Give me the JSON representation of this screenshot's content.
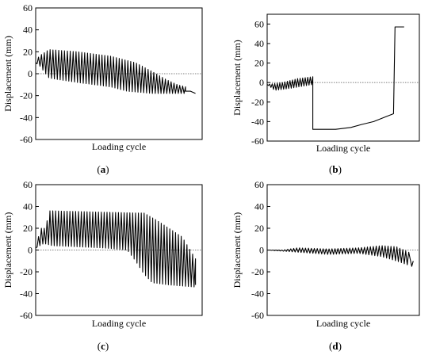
{
  "chart_data": [
    {
      "id": "a",
      "type": "line",
      "panel_label": "(a)",
      "xlabel": "Loading cycle",
      "ylabel": "Displacement (mm)",
      "ylim": [
        -60,
        60
      ],
      "yticks": [
        "60",
        "40",
        "20",
        "0",
        "-20",
        "-40",
        "-60"
      ],
      "zero_line": "dotted",
      "series": [
        {
          "pattern": "oscillation",
          "upper": [
            [
              0,
              10
            ],
            [
              0.02,
              16
            ],
            [
              0.08,
              22
            ],
            [
              0.25,
              20
            ],
            [
              0.45,
              16
            ],
            [
              0.6,
              10
            ],
            [
              0.7,
              2
            ],
            [
              0.78,
              -5
            ],
            [
              0.85,
              -10
            ],
            [
              0.9,
              -12
            ]
          ],
          "lower": [
            [
              0,
              10
            ],
            [
              0.02,
              8
            ],
            [
              0.08,
              -4
            ],
            [
              0.25,
              -8
            ],
            [
              0.45,
              -12
            ],
            [
              0.55,
              -16
            ],
            [
              0.7,
              -18
            ],
            [
              0.85,
              -18
            ],
            [
              0.9,
              -18
            ]
          ],
          "cycles": 52,
          "tail": [
            [
              0.9,
              -16
            ],
            [
              0.93,
              -16
            ],
            [
              0.96,
              -18
            ]
          ]
        }
      ]
    },
    {
      "id": "b",
      "type": "line",
      "panel_label": "(b)",
      "xlabel": "Loading cycle",
      "ylabel": "Displacement (mm)",
      "ylim": [
        -60,
        70
      ],
      "yticks": [
        "60",
        "40",
        "20",
        "0",
        "-20",
        "-40",
        "-60"
      ],
      "zero_line": "dotted",
      "series": [
        {
          "pattern": "oscillation",
          "upper": [
            [
              0,
              -2
            ],
            [
              0.1,
              0
            ],
            [
              0.2,
              4
            ],
            [
              0.3,
              6
            ]
          ],
          "lower": [
            [
              0,
              -2
            ],
            [
              0.05,
              -8
            ],
            [
              0.15,
              -6
            ],
            [
              0.3,
              -2
            ]
          ],
          "cycles": 18,
          "tail": [
            [
              0.3,
              6
            ],
            [
              0.3,
              -48
            ],
            [
              0.45,
              -48
            ],
            [
              0.55,
              -46
            ],
            [
              0.62,
              -43
            ],
            [
              0.7,
              -40
            ],
            [
              0.78,
              -35
            ],
            [
              0.83,
              -32
            ],
            [
              0.84,
              57
            ],
            [
              0.9,
              57
            ]
          ]
        }
      ]
    },
    {
      "id": "c",
      "type": "line",
      "panel_label": "(c)",
      "xlabel": "Loading cycle",
      "ylabel": "Displacement (mm)",
      "ylim": [
        -60,
        60
      ],
      "yticks": [
        "60",
        "40",
        "20",
        "0",
        "-20",
        "-40",
        "-60"
      ],
      "zero_line": "dotted",
      "series": [
        {
          "pattern": "oscillation",
          "upper": [
            [
              0,
              2
            ],
            [
              0.03,
              20
            ],
            [
              0.06,
              20
            ],
            [
              0.08,
              36
            ],
            [
              0.6,
              34
            ],
            [
              0.65,
              34
            ],
            [
              0.72,
              28
            ],
            [
              0.8,
              20
            ],
            [
              0.88,
              12
            ],
            [
              0.96,
              -8
            ]
          ],
          "lower": [
            [
              0,
              2
            ],
            [
              0.05,
              6
            ],
            [
              0.1,
              4
            ],
            [
              0.4,
              2
            ],
            [
              0.55,
              0
            ],
            [
              0.6,
              -10
            ],
            [
              0.65,
              -22
            ],
            [
              0.7,
              -30
            ],
            [
              0.8,
              -32
            ],
            [
              0.96,
              -34
            ]
          ],
          "cycles": 56,
          "tail": [
            [
              0.96,
              -32
            ]
          ]
        }
      ]
    },
    {
      "id": "d",
      "type": "line",
      "panel_label": "(d)",
      "xlabel": "Loading cycle",
      "ylabel": "Displacement (mm)",
      "ylim": [
        -60,
        60
      ],
      "yticks": [
        "60",
        "40",
        "20",
        "0",
        "-20",
        "-40",
        "-60"
      ],
      "zero_line": "dotted",
      "series": [
        {
          "pattern": "oscillation",
          "upper": [
            [
              0,
              0
            ],
            [
              0.1,
              0
            ],
            [
              0.2,
              2
            ],
            [
              0.4,
              1
            ],
            [
              0.6,
              2
            ],
            [
              0.75,
              4
            ],
            [
              0.85,
              3
            ],
            [
              0.93,
              -2
            ]
          ],
          "lower": [
            [
              0,
              0
            ],
            [
              0.1,
              -1
            ],
            [
              0.2,
              -2
            ],
            [
              0.4,
              -4
            ],
            [
              0.6,
              -3
            ],
            [
              0.75,
              -6
            ],
            [
              0.85,
              -10
            ],
            [
              0.93,
              -14
            ]
          ],
          "cycles": 48,
          "tail": [
            [
              0.95,
              -15
            ],
            [
              0.96,
              -10
            ]
          ]
        }
      ]
    }
  ]
}
